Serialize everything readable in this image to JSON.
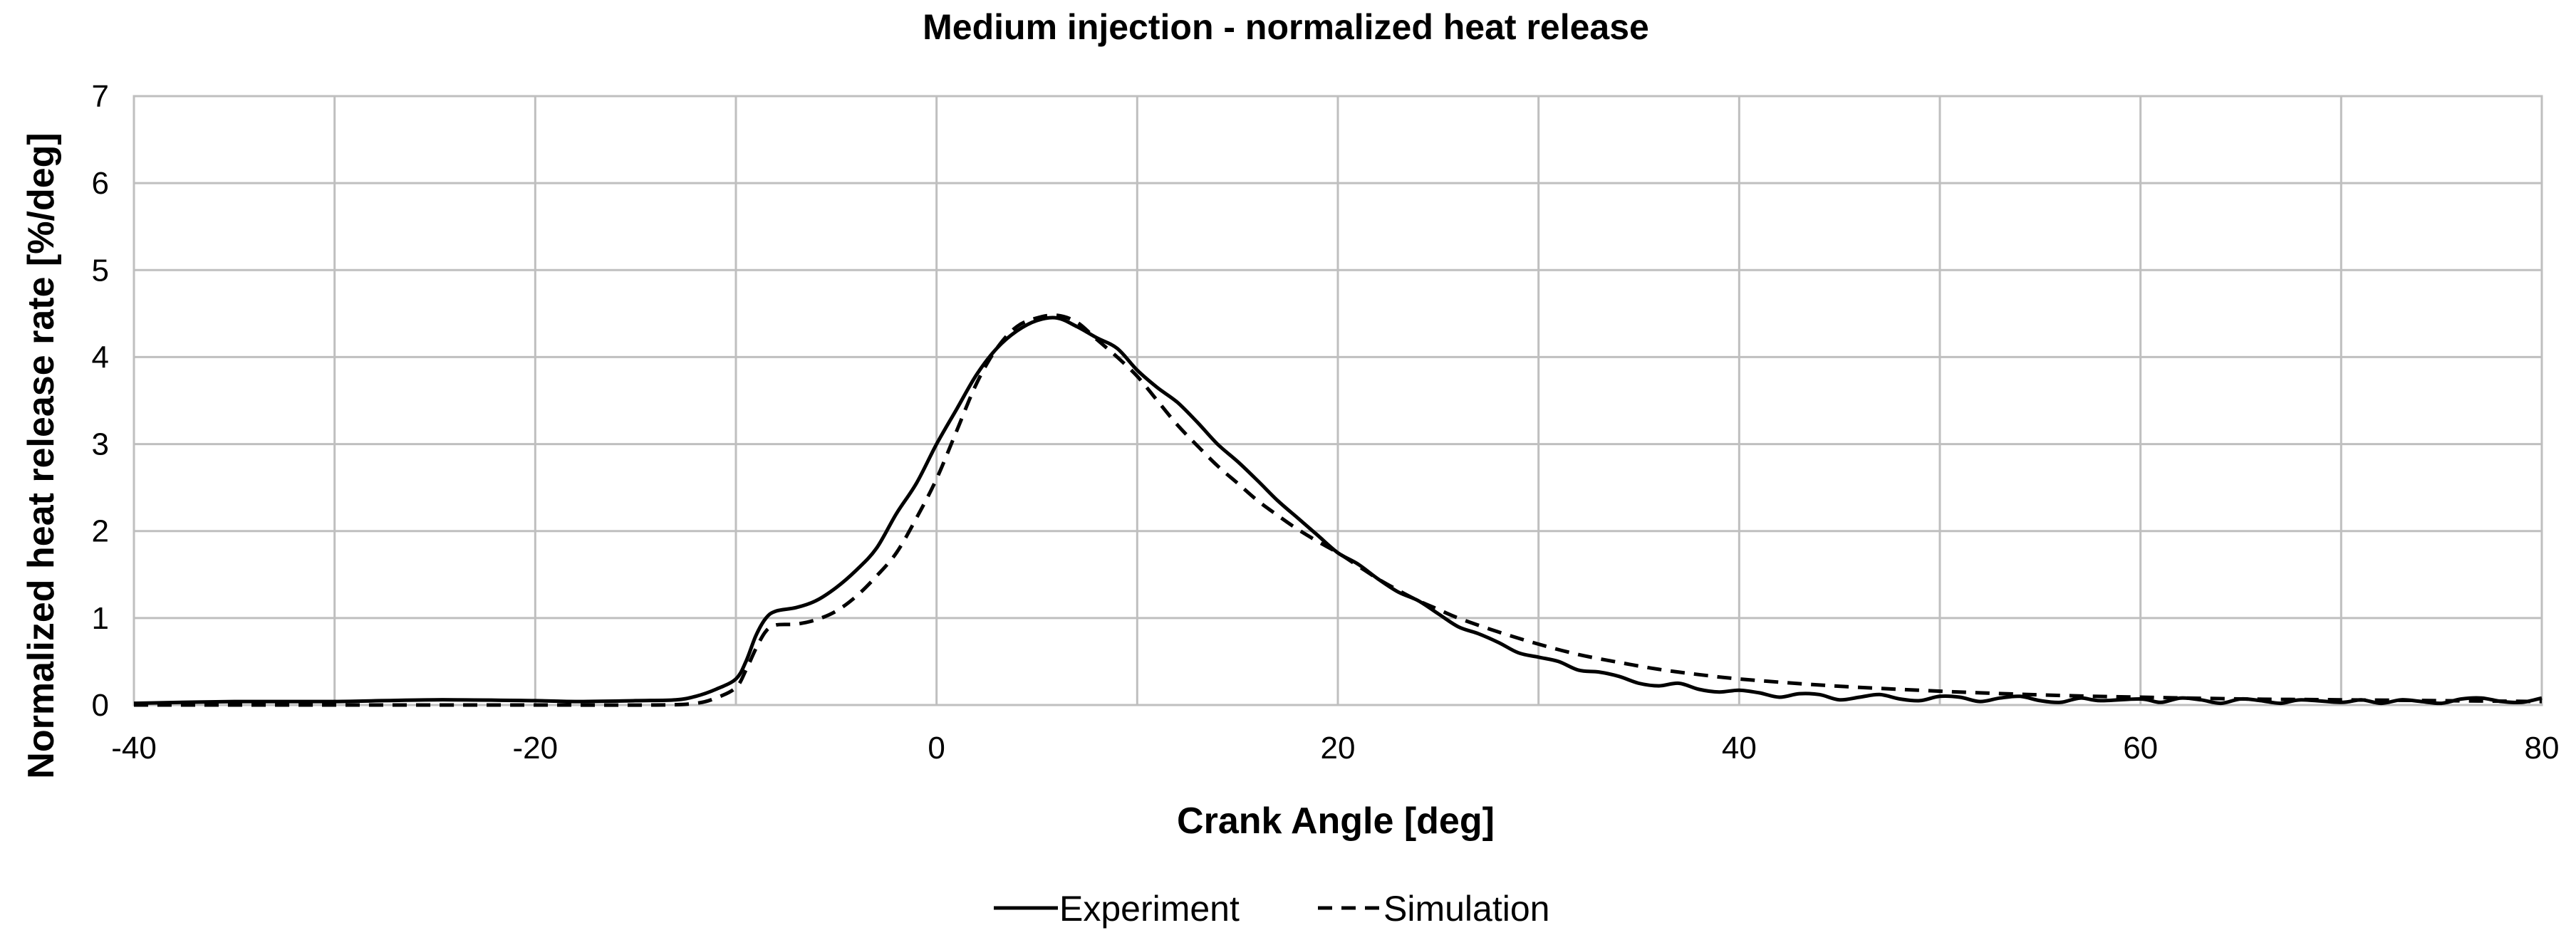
{
  "chart_data": {
    "type": "line",
    "title": "Medium injection - normalized heat release",
    "xlabel": "Crank Angle [deg]",
    "ylabel": "Normalized heat release rate [%/deg]",
    "xlim": [
      -40,
      80
    ],
    "ylim": [
      0,
      7
    ],
    "xticks": [
      -40,
      -20,
      0,
      20,
      40,
      60,
      80
    ],
    "yticks": [
      0,
      1,
      2,
      3,
      4,
      5,
      6,
      7
    ],
    "x_minor_grid_step": 10,
    "grid": true,
    "legend_position": "bottom-center",
    "series": [
      {
        "name": "Experiment",
        "style": "solid",
        "color": "#000000",
        "points": [
          [
            -40,
            0.02
          ],
          [
            -35,
            0.04
          ],
          [
            -30,
            0.04
          ],
          [
            -25,
            0.06
          ],
          [
            -20,
            0.05
          ],
          [
            -18,
            0.04
          ],
          [
            -15,
            0.05
          ],
          [
            -13,
            0.06
          ],
          [
            -12,
            0.1
          ],
          [
            -11,
            0.18
          ],
          [
            -10,
            0.3
          ],
          [
            -9.5,
            0.5
          ],
          [
            -9,
            0.8
          ],
          [
            -8.5,
            1.0
          ],
          [
            -8,
            1.08
          ],
          [
            -7,
            1.12
          ],
          [
            -6,
            1.2
          ],
          [
            -5,
            1.35
          ],
          [
            -4,
            1.55
          ],
          [
            -3,
            1.8
          ],
          [
            -2,
            2.2
          ],
          [
            -1,
            2.55
          ],
          [
            0,
            3.0
          ],
          [
            1,
            3.4
          ],
          [
            2,
            3.8
          ],
          [
            3,
            4.1
          ],
          [
            4,
            4.3
          ],
          [
            5,
            4.42
          ],
          [
            6,
            4.45
          ],
          [
            7,
            4.35
          ],
          [
            8,
            4.22
          ],
          [
            9,
            4.1
          ],
          [
            10,
            3.85
          ],
          [
            11,
            3.65
          ],
          [
            12,
            3.48
          ],
          [
            13,
            3.25
          ],
          [
            14,
            3.0
          ],
          [
            15,
            2.8
          ],
          [
            16,
            2.58
          ],
          [
            17,
            2.35
          ],
          [
            18,
            2.15
          ],
          [
            19,
            1.95
          ],
          [
            20,
            1.75
          ],
          [
            21,
            1.62
          ],
          [
            22,
            1.45
          ],
          [
            23,
            1.3
          ],
          [
            24,
            1.2
          ],
          [
            25,
            1.05
          ],
          [
            26,
            0.9
          ],
          [
            27,
            0.82
          ],
          [
            28,
            0.72
          ],
          [
            29,
            0.6
          ],
          [
            30,
            0.55
          ],
          [
            31,
            0.5
          ],
          [
            32,
            0.4
          ],
          [
            33,
            0.38
          ],
          [
            34,
            0.33
          ],
          [
            35,
            0.25
          ],
          [
            36,
            0.22
          ],
          [
            37,
            0.25
          ],
          [
            38,
            0.18
          ],
          [
            39,
            0.15
          ],
          [
            40,
            0.17
          ],
          [
            41,
            0.14
          ],
          [
            42,
            0.09
          ],
          [
            43,
            0.13
          ],
          [
            44,
            0.12
          ],
          [
            45,
            0.06
          ],
          [
            46,
            0.09
          ],
          [
            47,
            0.12
          ],
          [
            48,
            0.07
          ],
          [
            49,
            0.05
          ],
          [
            50,
            0.1
          ],
          [
            51,
            0.09
          ],
          [
            52,
            0.04
          ],
          [
            53,
            0.08
          ],
          [
            54,
            0.1
          ],
          [
            55,
            0.05
          ],
          [
            56,
            0.03
          ],
          [
            57,
            0.08
          ],
          [
            58,
            0.05
          ],
          [
            60,
            0.07
          ],
          [
            61,
            0.03
          ],
          [
            62,
            0.08
          ],
          [
            63,
            0.06
          ],
          [
            64,
            0.02
          ],
          [
            65,
            0.07
          ],
          [
            66,
            0.05
          ],
          [
            67,
            0.02
          ],
          [
            68,
            0.06
          ],
          [
            70,
            0.03
          ],
          [
            71,
            0.06
          ],
          [
            72,
            0.02
          ],
          [
            73,
            0.06
          ],
          [
            74,
            0.04
          ],
          [
            75,
            0.02
          ],
          [
            76,
            0.07
          ],
          [
            77,
            0.08
          ],
          [
            78,
            0.04
          ],
          [
            79,
            0.03
          ],
          [
            80,
            0.08
          ]
        ]
      },
      {
        "name": "Simulation",
        "style": "dashed",
        "color": "#000000",
        "points": [
          [
            -40,
            0.0
          ],
          [
            -30,
            0.0
          ],
          [
            -20,
            0.0
          ],
          [
            -14,
            0.0
          ],
          [
            -12,
            0.02
          ],
          [
            -11,
            0.08
          ],
          [
            -10,
            0.2
          ],
          [
            -9.5,
            0.4
          ],
          [
            -9,
            0.65
          ],
          [
            -8.5,
            0.85
          ],
          [
            -8,
            0.92
          ],
          [
            -7,
            0.93
          ],
          [
            -6,
            0.98
          ],
          [
            -5,
            1.08
          ],
          [
            -4,
            1.25
          ],
          [
            -3,
            1.48
          ],
          [
            -2,
            1.75
          ],
          [
            -1,
            2.15
          ],
          [
            0,
            2.6
          ],
          [
            1,
            3.15
          ],
          [
            2,
            3.7
          ],
          [
            3,
            4.1
          ],
          [
            4,
            4.35
          ],
          [
            5,
            4.45
          ],
          [
            6,
            4.48
          ],
          [
            7,
            4.4
          ],
          [
            8,
            4.2
          ],
          [
            9,
            4.0
          ],
          [
            10,
            3.78
          ],
          [
            11,
            3.5
          ],
          [
            12,
            3.22
          ],
          [
            13,
            2.98
          ],
          [
            14,
            2.75
          ],
          [
            15,
            2.55
          ],
          [
            16,
            2.35
          ],
          [
            17,
            2.18
          ],
          [
            18,
            2.02
          ],
          [
            19,
            1.88
          ],
          [
            20,
            1.75
          ],
          [
            21,
            1.6
          ],
          [
            22,
            1.45
          ],
          [
            23,
            1.32
          ],
          [
            24,
            1.2
          ],
          [
            25,
            1.1
          ],
          [
            26,
            1.0
          ],
          [
            28,
            0.84
          ],
          [
            30,
            0.7
          ],
          [
            32,
            0.58
          ],
          [
            34,
            0.49
          ],
          [
            36,
            0.41
          ],
          [
            38,
            0.35
          ],
          [
            40,
            0.3
          ],
          [
            44,
            0.23
          ],
          [
            48,
            0.18
          ],
          [
            52,
            0.14
          ],
          [
            56,
            0.11
          ],
          [
            60,
            0.09
          ],
          [
            65,
            0.07
          ],
          [
            70,
            0.06
          ],
          [
            75,
            0.05
          ],
          [
            80,
            0.04
          ]
        ]
      }
    ]
  }
}
